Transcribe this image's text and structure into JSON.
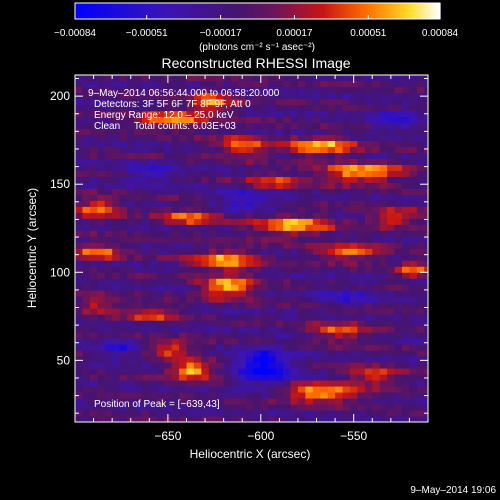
{
  "chart_data": {
    "type": "heatmap",
    "title": "Reconstructed RHESSI Image",
    "xlabel": "Heliocentric X (arcsec)",
    "ylabel": "Heliocentric Y (arcsec)",
    "xlim": [
      -700,
      -510
    ],
    "ylim": [
      15,
      212
    ],
    "x_ticks": [
      -650,
      -600,
      -550
    ],
    "x_tick_labels": [
      "−650",
      "−600",
      "−550"
    ],
    "y_ticks": [
      50,
      100,
      150,
      200
    ],
    "y_tick_labels": [
      "50",
      "100",
      "150",
      "200"
    ],
    "colorbar": {
      "min": -0.00084,
      "max": 0.00084,
      "ticks": [
        -0.00084,
        -0.00051,
        -0.00017,
        0.00017,
        0.00051,
        0.00084
      ],
      "tick_labels": [
        "−0.00084",
        "−0.00051",
        "−0.00017",
        "0.00017",
        "0.00051",
        "0.00084"
      ],
      "unit": "(photons cm⁻² s⁻¹ asec⁻²)"
    },
    "annotations": [
      "9–May–2014 06:56:44.000 to 06:58:20.000",
      "Detectors: 3F 5F 6F 7F 8F 9F, Att 0",
      "Energy Range: 12.0 – 25.0 keV",
      "Clean     Total counts: 6.03E+03"
    ],
    "peak_label": "Position of Peak = [−639,43]",
    "peak": [
      -639,
      43
    ],
    "hotspots": [
      {
        "x": -650,
        "y": 185,
        "v": 0.00065,
        "sx": 18,
        "sy": 5
      },
      {
        "x": -628,
        "y": 195,
        "v": 0.0006,
        "sx": 12,
        "sy": 6
      },
      {
        "x": -612,
        "y": 170,
        "v": 0.00055,
        "sx": 14,
        "sy": 6
      },
      {
        "x": -570,
        "y": 170,
        "v": 0.00075,
        "sx": 20,
        "sy": 5
      },
      {
        "x": -548,
        "y": 155,
        "v": 0.0008,
        "sx": 22,
        "sy": 5
      },
      {
        "x": -595,
        "y": 150,
        "v": 0.0005,
        "sx": 16,
        "sy": 5
      },
      {
        "x": -690,
        "y": 135,
        "v": 0.0006,
        "sx": 12,
        "sy": 6
      },
      {
        "x": -640,
        "y": 130,
        "v": 0.00055,
        "sx": 16,
        "sy": 5
      },
      {
        "x": -585,
        "y": 125,
        "v": 0.0007,
        "sx": 22,
        "sy": 6
      },
      {
        "x": -530,
        "y": 130,
        "v": 0.00055,
        "sx": 14,
        "sy": 5
      },
      {
        "x": -690,
        "y": 110,
        "v": 0.0006,
        "sx": 12,
        "sy": 5
      },
      {
        "x": -620,
        "y": 105,
        "v": 0.0007,
        "sx": 18,
        "sy": 6
      },
      {
        "x": -620,
        "y": 90,
        "v": 0.00075,
        "sx": 14,
        "sy": 6
      },
      {
        "x": -555,
        "y": 110,
        "v": 0.0006,
        "sx": 18,
        "sy": 5
      },
      {
        "x": -520,
        "y": 100,
        "v": 0.0005,
        "sx": 10,
        "sy": 5
      },
      {
        "x": -660,
        "y": 75,
        "v": 0.0005,
        "sx": 14,
        "sy": 5
      },
      {
        "x": -560,
        "y": 65,
        "v": 0.00055,
        "sx": 16,
        "sy": 5
      },
      {
        "x": -639,
        "y": 43,
        "v": 0.00084,
        "sx": 12,
        "sy": 5
      },
      {
        "x": -650,
        "y": 55,
        "v": 0.0006,
        "sx": 10,
        "sy": 5
      },
      {
        "x": -570,
        "y": 30,
        "v": 0.00075,
        "sx": 22,
        "sy": 5
      },
      {
        "x": -540,
        "y": 40,
        "v": 0.00055,
        "sx": 14,
        "sy": 5
      },
      {
        "x": -690,
        "y": 80,
        "v": 0.00045,
        "sx": 10,
        "sy": 5
      },
      {
        "x": -600,
        "y": 45,
        "v": -0.0008,
        "sx": 14,
        "sy": 10
      },
      {
        "x": -610,
        "y": 140,
        "v": -0.00045,
        "sx": 18,
        "sy": 6
      },
      {
        "x": -660,
        "y": 155,
        "v": -0.0004,
        "sx": 14,
        "sy": 5
      },
      {
        "x": -530,
        "y": 185,
        "v": -0.0004,
        "sx": 14,
        "sy": 6
      },
      {
        "x": -555,
        "y": 85,
        "v": -0.00035,
        "sx": 14,
        "sy": 5
      },
      {
        "x": -680,
        "y": 55,
        "v": -0.0004,
        "sx": 10,
        "sy": 6
      }
    ]
  },
  "footer_timestamp": "9–May–2014 19:06"
}
